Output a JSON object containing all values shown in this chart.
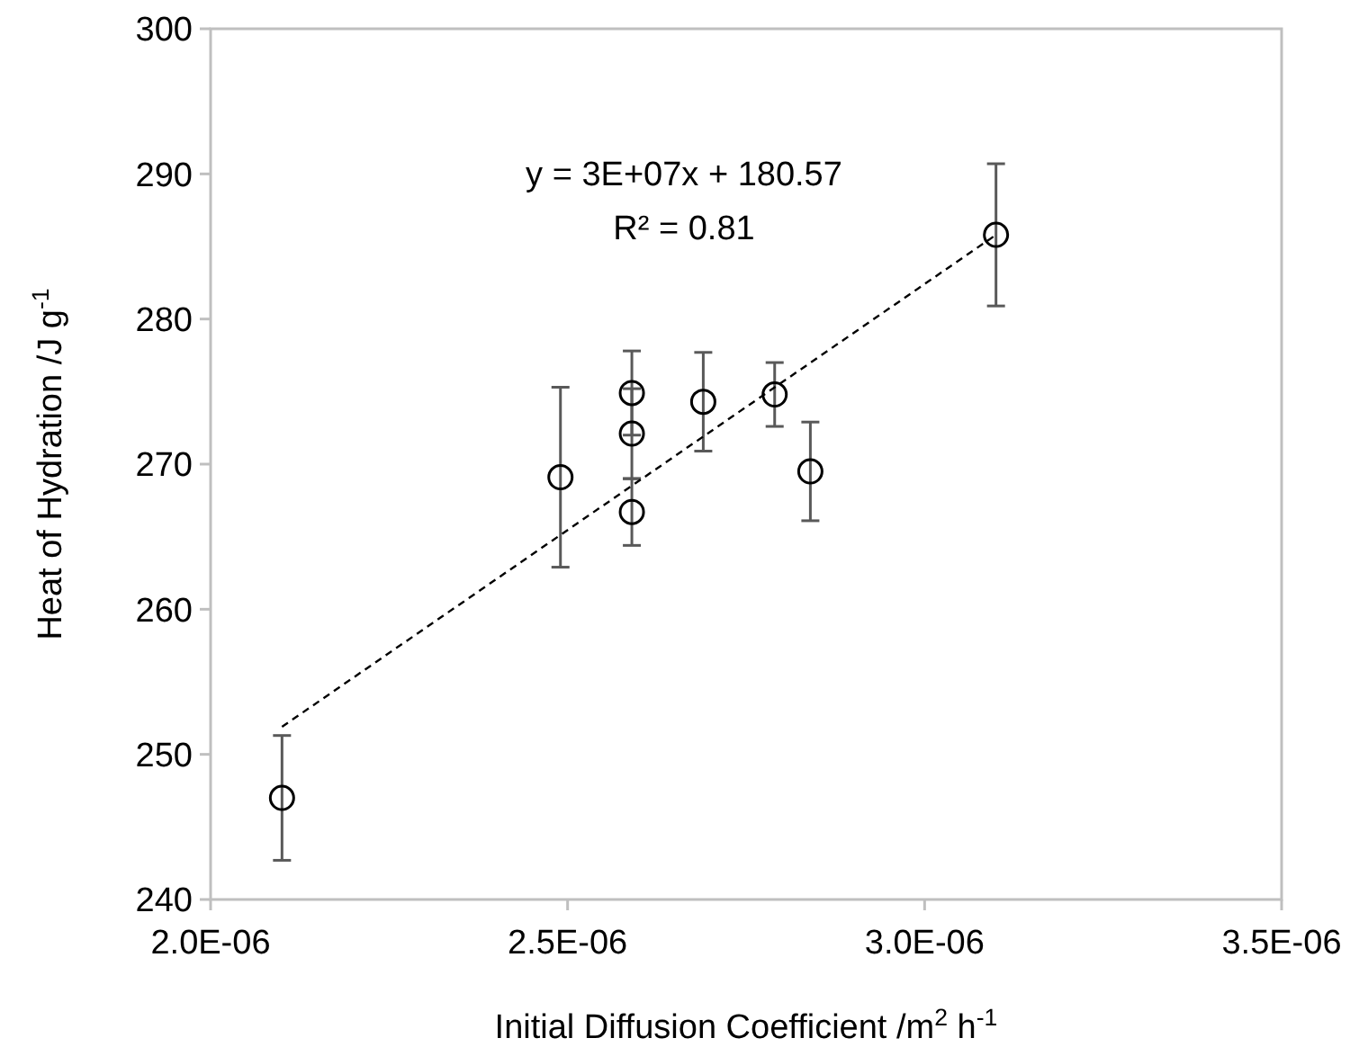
{
  "chart_data": {
    "type": "scatter",
    "xlabel": "Initial Diffusion Coefficient /m$^{2}$ h$^{-1}$",
    "ylabel": "Heat of Hydration /J g$^{-1}$",
    "xlim": [
      2e-06,
      3.5e-06
    ],
    "xticks": [
      {
        "value": 2e-06,
        "label": "2.0E-06"
      },
      {
        "value": 2.5e-06,
        "label": "2.5E-06"
      },
      {
        "value": 3e-06,
        "label": "3.0E-06"
      },
      {
        "value": 3.5e-06,
        "label": "3.5E-06"
      }
    ],
    "ylim": [
      240,
      300
    ],
    "yticks": [
      240,
      250,
      260,
      270,
      280,
      290,
      300
    ],
    "grid": false,
    "marker": "circle",
    "annotations": [
      "y = 3E+07x + 180.57",
      "R² = 0.81"
    ],
    "series": [
      {
        "color": "#000000",
        "x": [
          2.1e-06,
          2.49e-06,
          2.59e-06,
          2.59e-06,
          2.59e-06,
          2.69e-06,
          2.79e-06,
          2.84e-06,
          3.1e-06
        ],
        "values": [
          247.0,
          269.1,
          274.9,
          272.1,
          266.7,
          274.3,
          274.8,
          269.5,
          285.8
        ],
        "errors": [
          4.3,
          6.2,
          2.9,
          3.1,
          2.3,
          3.4,
          2.2,
          3.4,
          4.9
        ]
      },
      {
        "type": "line",
        "color": "#000000",
        "line_style": "dashed",
        "marker": "none",
        "x": [
          2.1e-06,
          3.1e-06
        ],
        "values": [
          251.9,
          285.8
        ]
      }
    ]
  }
}
